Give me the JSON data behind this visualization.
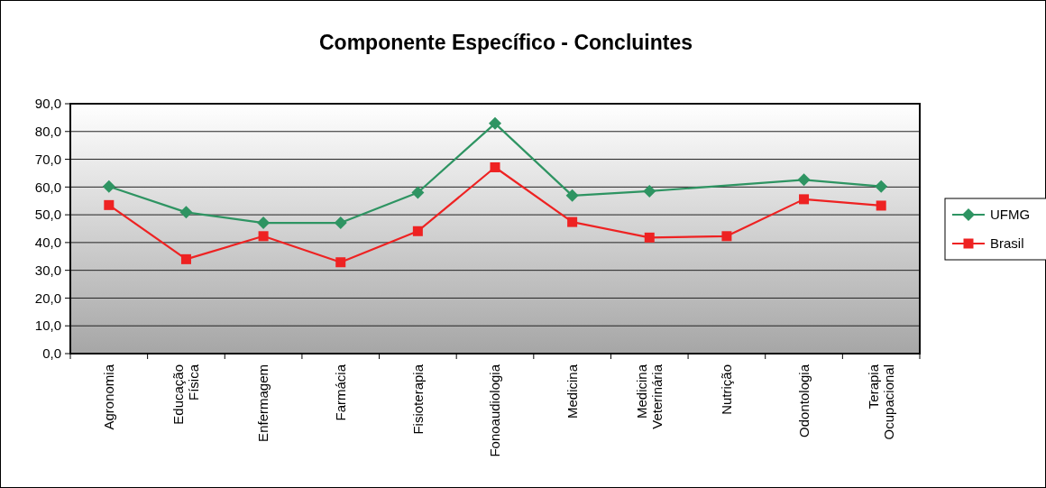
{
  "chart_data": {
    "type": "line",
    "title": "Componente Específico - Concluintes",
    "categories": [
      "Agronomia",
      "Educação Física",
      "Enfermagem",
      "Farmácia",
      "Fisioterapia",
      "Fonoaudiologia",
      "Medicina",
      "Medicina Veterinária",
      "Nutrição",
      "Odontologia",
      "Terapia Ocupacional"
    ],
    "series": [
      {
        "name": "UFMG",
        "color": "#2e9462",
        "marker": "diamond",
        "values": [
          60.2,
          50.9,
          47.1,
          47.1,
          58.0,
          82.9,
          56.9,
          58.5,
          null,
          62.6,
          60.2
        ]
      },
      {
        "name": "Brasil",
        "color": "#ee2222",
        "marker": "square",
        "values": [
          53.5,
          34.0,
          42.3,
          32.9,
          44.1,
          67.1,
          47.4,
          41.8,
          42.3,
          55.6,
          53.3
        ]
      }
    ],
    "ylim": [
      0,
      90
    ],
    "yticks": [
      {
        "value": 0,
        "label": "0,0"
      },
      {
        "value": 10,
        "label": "10,0"
      },
      {
        "value": 20,
        "label": "20,0"
      },
      {
        "value": 30,
        "label": "30,0"
      },
      {
        "value": 40,
        "label": "40,0"
      },
      {
        "value": 50,
        "label": "50,0"
      },
      {
        "value": 60,
        "label": "60,0"
      },
      {
        "value": 70,
        "label": "70,0"
      },
      {
        "value": 80,
        "label": "80,0"
      },
      {
        "value": 90,
        "label": "90,0"
      }
    ],
    "grid": "y",
    "legend": "right",
    "line_style": "solid"
  }
}
